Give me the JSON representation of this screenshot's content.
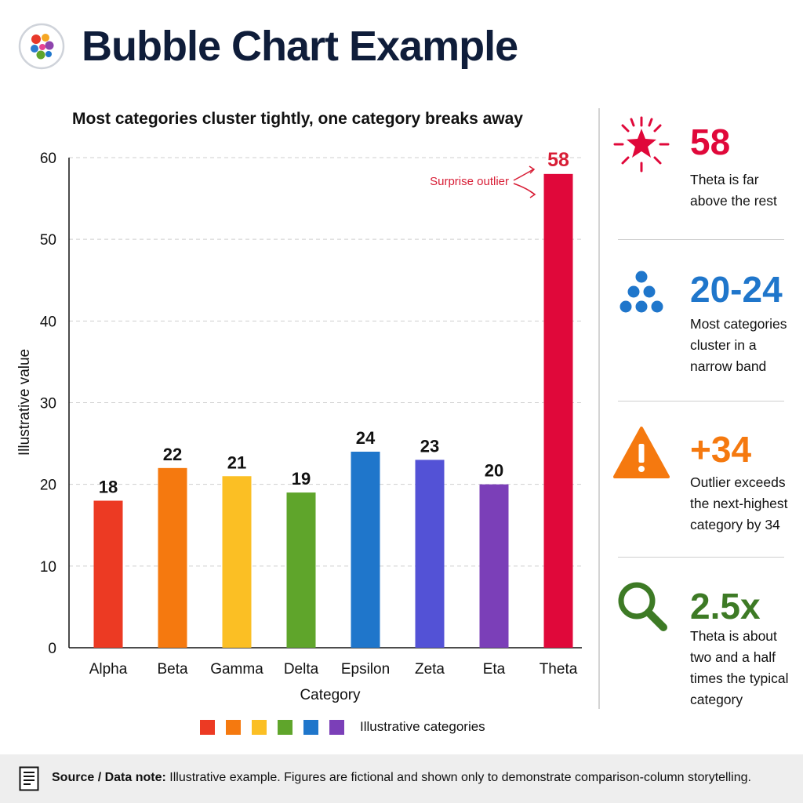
{
  "header": {
    "title": "Bubble Chart Example"
  },
  "chart_data": {
    "type": "bar",
    "title": "Most categories cluster tightly, one category breaks away",
    "xlabel": "Category",
    "ylabel": "Illustrative value",
    "ylim": [
      0,
      60
    ],
    "yticks": [
      0,
      10,
      20,
      30,
      40,
      50,
      60
    ],
    "grid": true,
    "categories": [
      "Alpha",
      "Beta",
      "Gamma",
      "Delta",
      "Epsilon",
      "Zeta",
      "Eta",
      "Theta"
    ],
    "values": [
      18,
      22,
      21,
      19,
      24,
      23,
      20,
      58
    ],
    "colors": [
      "#ec3a23",
      "#f5790f",
      "#fbbf24",
      "#5fa52b",
      "#1f76cb",
      "#5352d6",
      "#7b3fb8",
      "#e0083a"
    ],
    "annotation": {
      "text": "Surprise outlier",
      "target": "Theta",
      "color": "#d81e36"
    }
  },
  "legend": {
    "colors": [
      "#ec3a23",
      "#f5790f",
      "#fbbf24",
      "#5fa52b",
      "#1f76cb",
      "#7b3fb8"
    ],
    "label": "Illustrative categories"
  },
  "kpis": [
    {
      "value": "58",
      "color": "#e0083a",
      "icon": "star-burst-icon",
      "description": "Theta is far above the rest"
    },
    {
      "value": "20-24",
      "color": "#1f76cb",
      "icon": "dot-cluster-icon",
      "description": "Most categories cluster in a narrow band"
    },
    {
      "value": "+34",
      "color": "#f5790f",
      "icon": "warning-icon",
      "description": "Outlier exceeds the next-highest category by 34"
    },
    {
      "value": "2.5x",
      "color": "#3d7a25",
      "icon": "magnifier-icon",
      "description": "Theta is about two and a half times the typical category"
    }
  ],
  "footer": {
    "label": "Source / Data note:",
    "text": "Illustrative example. Figures are fictional and shown only to demonstrate comparison-column storytelling.",
    "icon": "document-icon"
  }
}
